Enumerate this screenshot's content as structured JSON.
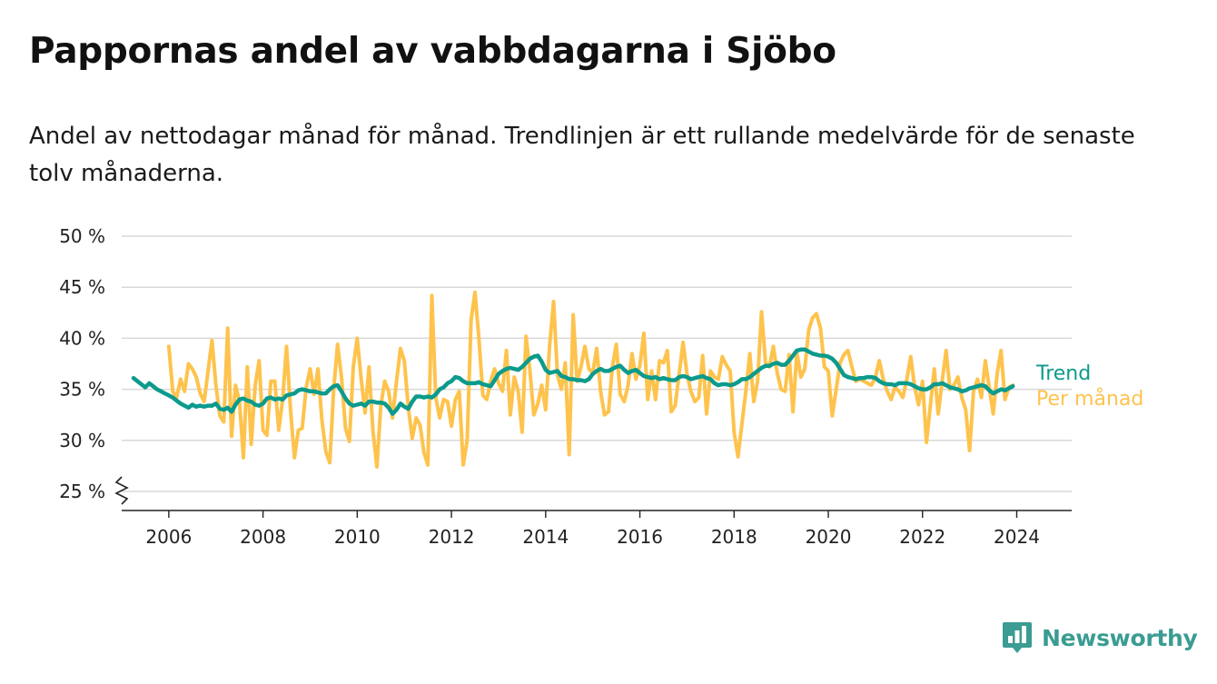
{
  "header": {
    "title": "Pappornas andel av vabbdagarna i Sjöbo",
    "subtitle": "Andel av nettodagar månad för månad. Trendlinjen är ett rullande medelvärde för de senaste tolv månaderna."
  },
  "brand": {
    "name": "Newsworthy",
    "icon": "newsworthy-logo-icon",
    "color": "#3a9c92"
  },
  "colors": {
    "monthly": "#fec34d",
    "trend": "#0c9a8c",
    "grid": "#d9d9d9",
    "axis": "#222222"
  },
  "chart_data": {
    "type": "line",
    "title": "Pappornas andel av vabbdagarna i Sjöbo",
    "subtitle": "Andel av nettodagar månad för månad. Trendlinjen är ett rullande medelvärde för de senaste tolv månaderna.",
    "x_start": "2006-01",
    "x_step": "1 month",
    "x_ticks": [
      "2006",
      "2008",
      "2010",
      "2012",
      "2014",
      "2016",
      "2018",
      "2020",
      "2022",
      "2024"
    ],
    "xlim": [
      "2005-01",
      "2025-03"
    ],
    "y_ticks": [
      "25 %",
      "30 %",
      "35 %",
      "40 %",
      "45 %",
      "50 %"
    ],
    "ylim": [
      24,
      50
    ],
    "y_axis_break": true,
    "grid": "horizontal",
    "legend": "inline labels at right end of lines",
    "series": [
      {
        "name": "Per månad",
        "values": [
          39.2,
          34.8,
          34.2,
          36.0,
          34.8,
          37.5,
          37.0,
          36.2,
          34.6,
          33.8,
          36.8,
          39.8,
          35.4,
          32.4,
          31.8,
          41.0,
          30.4,
          35.4,
          33.8,
          28.3,
          37.2,
          29.6,
          35.4,
          37.8,
          31.0,
          30.5,
          35.8,
          35.8,
          31.0,
          34.0,
          39.2,
          33.0,
          28.3,
          31.0,
          31.2,
          35.2,
          37.0,
          34.5,
          37.0,
          32.0,
          28.9,
          27.8,
          35.0,
          39.4,
          36.2,
          31.2,
          29.9,
          37.2,
          40.0,
          36.0,
          32.7,
          37.2,
          31.0,
          27.4,
          33.4,
          35.8,
          34.8,
          32.2,
          35.8,
          39.0,
          37.8,
          33.3,
          30.2,
          32.2,
          31.5,
          28.8,
          27.6,
          44.2,
          34.2,
          32.2,
          34.0,
          33.8,
          31.4,
          34.0,
          34.8,
          27.6,
          30.0,
          41.8,
          44.5,
          40.0,
          34.4,
          34.0,
          35.8,
          37.0,
          35.6,
          34.8,
          38.8,
          32.5,
          36.2,
          34.8,
          30.8,
          40.2,
          36.8,
          32.5,
          33.6,
          35.4,
          33.0,
          39.2,
          43.6,
          36.4,
          35.0,
          37.6,
          28.6,
          42.3,
          35.8,
          37.2,
          39.2,
          37.0,
          36.6,
          39.0,
          34.8,
          32.5,
          32.8,
          37.2,
          39.4,
          34.5,
          33.8,
          35.4,
          38.5,
          36.0,
          37.3,
          40.5,
          34.0,
          36.8,
          34.0,
          37.8,
          37.6,
          38.8,
          32.8,
          33.4,
          36.5,
          39.6,
          36.5,
          34.8,
          33.8,
          34.2,
          38.3,
          32.6,
          36.8,
          36.2,
          36.0,
          38.2,
          37.4,
          36.8,
          30.8,
          28.4,
          31.6,
          34.8,
          38.5,
          33.8,
          35.8,
          42.6,
          37.6,
          37.2,
          39.2,
          36.6,
          35.0,
          34.8,
          38.4,
          32.8,
          38.6,
          36.2,
          37.0,
          40.8,
          42.0,
          42.4,
          41.0,
          37.2,
          36.8,
          32.4,
          35.0,
          37.6,
          38.4,
          38.8,
          37.2,
          35.8,
          36.0,
          35.8,
          35.6,
          35.4,
          36.2,
          37.8,
          36.0,
          34.8,
          34.0,
          35.2,
          34.8,
          34.2,
          36.0,
          38.2,
          35.2,
          33.5,
          35.8,
          29.8,
          33.4,
          37.0,
          32.6,
          35.8,
          38.8,
          35.0,
          35.4,
          36.2,
          34.2,
          33.0,
          29.0,
          34.8,
          36.0,
          34.2,
          37.8,
          35.2,
          32.6,
          36.5,
          38.8,
          34.0,
          35.2,
          35.4
        ]
      },
      {
        "name": "Trend",
        "values": [
          36.1,
          35.8,
          35.5,
          35.2,
          35.6,
          35.3,
          35.0,
          34.8,
          34.6,
          34.4,
          34.2,
          33.9,
          33.6,
          33.4,
          33.2,
          33.5,
          33.3,
          33.4,
          33.3,
          33.4,
          33.4,
          33.6,
          33.1,
          33.0,
          33.2,
          32.8,
          33.5,
          34.0,
          34.1,
          33.9,
          33.8,
          33.5,
          33.4,
          33.6,
          34.1,
          34.2,
          34.0,
          34.1,
          34.0,
          34.4,
          34.5,
          34.6,
          34.9,
          35.0,
          34.9,
          34.8,
          34.8,
          34.7,
          34.6,
          34.6,
          35.0,
          35.3,
          35.4,
          34.8,
          34.1,
          33.6,
          33.4,
          33.5,
          33.6,
          33.4,
          33.8,
          33.8,
          33.7,
          33.7,
          33.6,
          33.2,
          32.6,
          33.0,
          33.6,
          33.3,
          33.1,
          33.8,
          34.3,
          34.3,
          34.2,
          34.3,
          34.2,
          34.5,
          35.0,
          35.2,
          35.6,
          35.8,
          36.2,
          36.1,
          35.8,
          35.6,
          35.6,
          35.6,
          35.7,
          35.5,
          35.4,
          35.3,
          35.9,
          36.5,
          36.8,
          37.0,
          37.1,
          37.0,
          36.9,
          37.2,
          37.6,
          38.0,
          38.2,
          38.3,
          37.7,
          36.9,
          36.6,
          36.7,
          36.8,
          36.3,
          36.2,
          36.0,
          36.0,
          35.9,
          35.9,
          35.8,
          36.0,
          36.5,
          36.8,
          37.0,
          36.8,
          36.8,
          37.0,
          37.2,
          37.3,
          36.9,
          36.6,
          36.8,
          36.9,
          36.6,
          36.3,
          36.2,
          36.1,
          36.2,
          36.0,
          36.1,
          36.0,
          35.9,
          35.9,
          36.2,
          36.3,
          36.2,
          36.0,
          36.1,
          36.2,
          36.3,
          36.1,
          36.0,
          35.6,
          35.4,
          35.5,
          35.5,
          35.4,
          35.5,
          35.7,
          36.0,
          36.0,
          36.2,
          36.5,
          36.8,
          37.1,
          37.3,
          37.3,
          37.5,
          37.6,
          37.4,
          37.4,
          37.8,
          38.3,
          38.8,
          38.9,
          38.9,
          38.7,
          38.5,
          38.4,
          38.3,
          38.3,
          38.2,
          38.0,
          37.6,
          37.0,
          36.4,
          36.2,
          36.1,
          36.0,
          36.1,
          36.1,
          36.2,
          36.2,
          36.1,
          35.8,
          35.6,
          35.5,
          35.5,
          35.4,
          35.6,
          35.6,
          35.6,
          35.5,
          35.3,
          35.1,
          35.0,
          35.0,
          35.2,
          35.5,
          35.5,
          35.6,
          35.4,
          35.2,
          35.1,
          35.0,
          34.8,
          34.9,
          35.1,
          35.2,
          35.3,
          35.4,
          35.3,
          34.9,
          34.6,
          34.8,
          35.0,
          34.9,
          35.1,
          35.3
        ]
      }
    ]
  }
}
